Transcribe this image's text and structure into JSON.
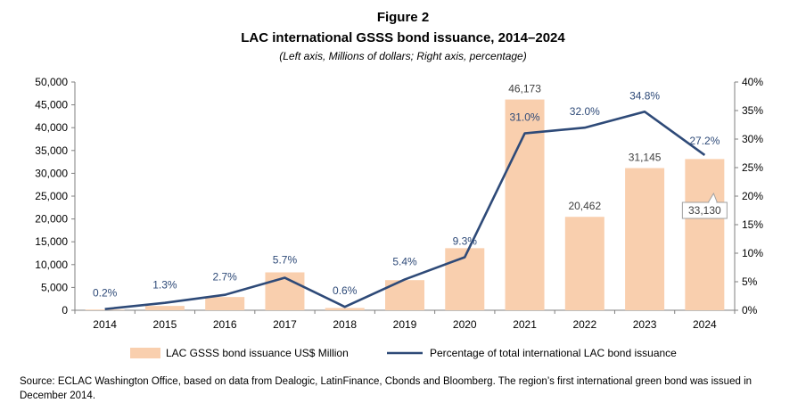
{
  "figure": {
    "label": "Figure 2",
    "title": "LAC international GSSS bond issuance, 2014–2024",
    "subtitle": "(Left axis, Millions of dollars; Right axis, percentage)"
  },
  "colors": {
    "bar": "#f9cfae",
    "line": "#2e4a78",
    "axis": "#7f7f7f",
    "pct_label": "#2e4a78",
    "val_label": "#404040"
  },
  "chart_data": {
    "type": "bar",
    "categories": [
      "2014",
      "2015",
      "2016",
      "2017",
      "2018",
      "2019",
      "2020",
      "2021",
      "2022",
      "2023",
      "2024"
    ],
    "series": [
      {
        "name": "LAC GSSS bond issuance US$ Million",
        "type": "bar",
        "axis": "left",
        "values": [
          150,
          950,
          2900,
          8300,
          500,
          6600,
          13600,
          46173,
          20462,
          31145,
          33130
        ]
      },
      {
        "name": "Percentage of total international LAC bond issuance",
        "type": "line",
        "axis": "right",
        "values": [
          0.2,
          1.3,
          2.7,
          5.7,
          0.6,
          5.4,
          9.3,
          31.0,
          32.0,
          34.8,
          27.2
        ]
      }
    ],
    "bar_labels": [
      {
        "index": 7,
        "text": "46,173"
      },
      {
        "index": 8,
        "text": "20,462"
      },
      {
        "index": 9,
        "text": "31,145"
      },
      {
        "index": 10,
        "text": "33,130",
        "callout": true
      }
    ],
    "line_labels": [
      "0.2%",
      "1.3%",
      "2.7%",
      "5.7%",
      "0.6%",
      "5.4%",
      "9.3%",
      "31.0%",
      "32.0%",
      "34.8%",
      "27.2%"
    ],
    "y_left": {
      "min": 0,
      "max": 50000,
      "ticks": [
        "0",
        "5,000",
        "10,000",
        "15,000",
        "20,000",
        "25,000",
        "30,000",
        "35,000",
        "40,000",
        "45,000",
        "50,000"
      ]
    },
    "y_right": {
      "min": 0,
      "max": 40,
      "ticks": [
        "0%",
        "5%",
        "10%",
        "15%",
        "20%",
        "25%",
        "30%",
        "35%",
        "40%"
      ]
    },
    "legend": [
      "LAC GSSS bond issuance US$ Million",
      "Percentage of total international LAC bond issuance"
    ],
    "legend_position": "bottom"
  },
  "source": "Source: ECLAC Washington Office, based on data from Dealogic, LatinFinance, Cbonds and Bloomberg. The region’s first international green bond was issued in December 2014."
}
